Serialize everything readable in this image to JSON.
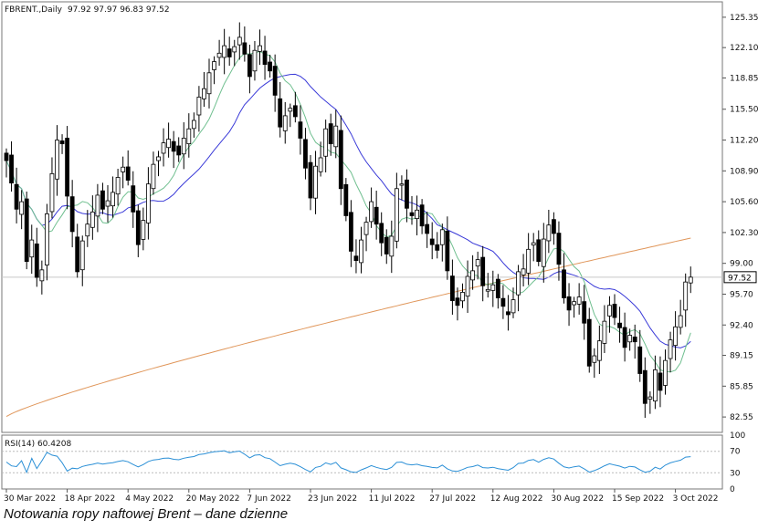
{
  "header": {
    "symbol": "FBRENT.,Daily",
    "ohlc": "97.92 97.97 96.83 97.52"
  },
  "rsi": {
    "label": "RSI(14) 60.4208"
  },
  "caption": "Notowania ropy naftowej Brent – dane dzienne",
  "colors": {
    "background": "#ffffff",
    "bull_body": "#ffffff",
    "bear_body": "#000000",
    "ma_short": "#6fbf8f",
    "ma_mid": "#3a3ad8",
    "ma_long": "#e0965a",
    "rsi_line": "#2a8fd6",
    "price_marker": "#c8c8c8",
    "axis": "#555555"
  },
  "chart_data": [
    {
      "type": "candlestick",
      "title": "FBRENT.,Daily",
      "ylim": [
        80.9,
        127.0
      ],
      "y_ticks": [
        "125.35",
        "122.10",
        "118.85",
        "115.50",
        "112.20",
        "108.90",
        "105.60",
        "102.30",
        "99.00",
        "95.70",
        "92.40",
        "89.15",
        "85.85",
        "82.55"
      ],
      "x_tick_labels": [
        "30 Mar 2022",
        "18 Apr 2022",
        "4 May 2022",
        "20 May 2022",
        "7 Jun 2022",
        "23 Jun 2022",
        "11 Jul 2022",
        "27 Jul 2022",
        "12 Aug 2022",
        "30 Aug 2022",
        "15 Sep 2022",
        "3 Oct 2022"
      ],
      "x_tick_index": [
        0,
        12,
        24,
        36,
        48,
        60,
        72,
        84,
        96,
        108,
        120,
        132
      ],
      "last_price": "97.52",
      "closes": [
        110.0,
        107.6,
        104.8,
        105.6,
        99.2,
        101.5,
        97.5,
        98.3,
        104.3,
        108.6,
        112.2,
        111.8,
        106.2,
        102.4,
        98.1,
        101.4,
        103.2,
        104.5,
        106.3,
        104.8,
        105.7,
        106.6,
        108.2,
        109.3,
        107.9,
        104.5,
        101.0,
        103.6,
        107.5,
        109.6,
        110.4,
        111.9,
        112.3,
        111.0,
        110.6,
        112.4,
        113.4,
        114.3,
        116.8,
        117.7,
        119.4,
        120.6,
        121.5,
        122.3,
        121.1,
        122.2,
        123.2,
        121.4,
        119.0,
        121.8,
        122.3,
        120.3,
        119.6,
        117.0,
        113.6,
        114.8,
        115.6,
        114.7,
        112.4,
        109.2,
        106.0,
        109.4,
        110.3,
        113.4,
        111.8,
        113.7,
        107.0,
        104.1,
        100.3,
        99.3,
        101.5,
        103.4,
        105.6,
        103.2,
        101.2,
        100.0,
        101.9,
        107.0,
        107.5,
        104.9,
        104.1,
        104.7,
        103.0,
        102.2,
        101.0,
        100.4,
        102.6,
        98.2,
        95.0,
        94.5,
        95.9,
        97.6,
        98.2,
        99.4,
        96.6,
        96.2,
        96.7,
        95.3,
        94.4,
        93.5,
        95.1,
        98.1,
        98.4,
        100.5,
        101.2,
        99.2,
        101.6,
        103.1,
        102.2,
        98.9,
        95.3,
        94.0,
        94.9,
        95.4,
        92.6,
        88.0,
        89.1,
        90.7,
        92.8,
        94.5,
        93.2,
        92.1,
        90.0,
        91.3,
        90.6,
        87.2,
        84.0,
        84.7,
        87.6,
        85.4,
        88.6,
        90.8,
        92.2,
        93.4,
        97.0,
        97.52
      ],
      "rsi_ylim": [
        0,
        100
      ],
      "rsi_ticks": [
        "100",
        "70",
        "30",
        "0"
      ]
    }
  ]
}
